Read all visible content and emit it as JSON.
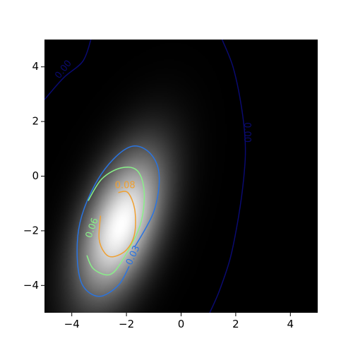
{
  "chart_data": {
    "type": "heatmap",
    "title": "",
    "xlabel": "",
    "ylabel": "",
    "xlim": [
      -5,
      5
    ],
    "ylim": [
      -5,
      5
    ],
    "grid": false,
    "colormap": "gray",
    "field": {
      "kind": "2d-gaussian-density",
      "peak_x": -2.2,
      "peak_y": -1.8,
      "sigma_x": 1.1,
      "sigma_y": 1.9,
      "correlation": 0.5
    },
    "x_ticks": [
      {
        "value": -4,
        "label": "−4"
      },
      {
        "value": -2,
        "label": "−2"
      },
      {
        "value": 0,
        "label": "0"
      },
      {
        "value": 2,
        "label": "2"
      },
      {
        "value": 4,
        "label": "4"
      }
    ],
    "y_ticks": [
      {
        "value": 4,
        "label": "4"
      },
      {
        "value": 2,
        "label": "2"
      },
      {
        "value": 0,
        "label": "0"
      },
      {
        "value": -2,
        "label": "−2"
      },
      {
        "value": -4,
        "label": "−4"
      }
    ],
    "contours": [
      {
        "level": "0.00",
        "color": "#0a0a70",
        "paths": [
          [
            [
              -5.0,
              2.8
            ],
            [
              -4.3,
              3.6
            ],
            [
              -3.6,
              4.2
            ],
            [
              -3.3,
              5.0
            ]
          ],
          [
            [
              1.5,
              5.0
            ],
            [
              1.9,
              4.0
            ],
            [
              2.2,
              2.6
            ],
            [
              2.35,
              1.2
            ],
            [
              2.3,
              0.0
            ],
            [
              2.1,
              -1.5
            ],
            [
              1.8,
              -3.0
            ],
            [
              1.4,
              -4.2
            ],
            [
              1.05,
              -5.0
            ]
          ]
        ],
        "labels": [
          {
            "text": "0.00",
            "x": -4.3,
            "y": 3.9,
            "angle": -52
          },
          {
            "text": "0.00",
            "x": 2.4,
            "y": 1.6,
            "angle": 90
          }
        ]
      },
      {
        "level": "0.03",
        "color": "#2a74e0",
        "paths": [
          [
            [
              -1.7,
              -2.6
            ],
            [
              -1.0,
              -1.3
            ],
            [
              -0.8,
              0.0
            ],
            [
              -1.1,
              0.8
            ],
            [
              -1.75,
              1.1
            ],
            [
              -2.5,
              0.6
            ],
            [
              -3.2,
              -0.4
            ],
            [
              -3.7,
              -1.7
            ],
            [
              -3.8,
              -3.0
            ],
            [
              -3.6,
              -4.0
            ],
            [
              -3.0,
              -4.4
            ],
            [
              -2.3,
              -4.0
            ],
            [
              -1.9,
              -3.3
            ]
          ]
        ],
        "labels": [
          {
            "text": "0.03",
            "x": -1.75,
            "y": -2.9,
            "angle": -65
          }
        ]
      },
      {
        "level": "0.06",
        "color": "#88f088",
        "paths": [
          [
            [
              -3.4,
              -0.9
            ],
            [
              -2.9,
              -0.1
            ],
            [
              -2.2,
              0.3
            ],
            [
              -1.6,
              0.2
            ],
            [
              -1.35,
              -0.6
            ],
            [
              -1.5,
              -1.8
            ],
            [
              -2.1,
              -3.0
            ],
            [
              -2.6,
              -3.6
            ],
            [
              -3.2,
              -3.4
            ],
            [
              -3.45,
              -2.9
            ]
          ]
        ],
        "labels": [
          {
            "text": "0.06",
            "x": -3.25,
            "y": -1.9,
            "angle": -70
          }
        ]
      },
      {
        "level": "0.08",
        "color": "#f0a030",
        "paths": [
          [
            [
              -2.95,
              -1.45
            ],
            [
              -3.0,
              -2.3
            ],
            [
              -2.8,
              -2.8
            ],
            [
              -2.5,
              -2.95
            ],
            [
              -2.0,
              -2.7
            ],
            [
              -1.7,
              -2.1
            ],
            [
              -1.7,
              -1.2
            ],
            [
              -1.95,
              -0.6
            ],
            [
              -2.3,
              -0.6
            ]
          ]
        ],
        "labels": [
          {
            "text": "0.08",
            "x": -2.05,
            "y": -0.35,
            "angle": 0
          }
        ]
      }
    ]
  }
}
